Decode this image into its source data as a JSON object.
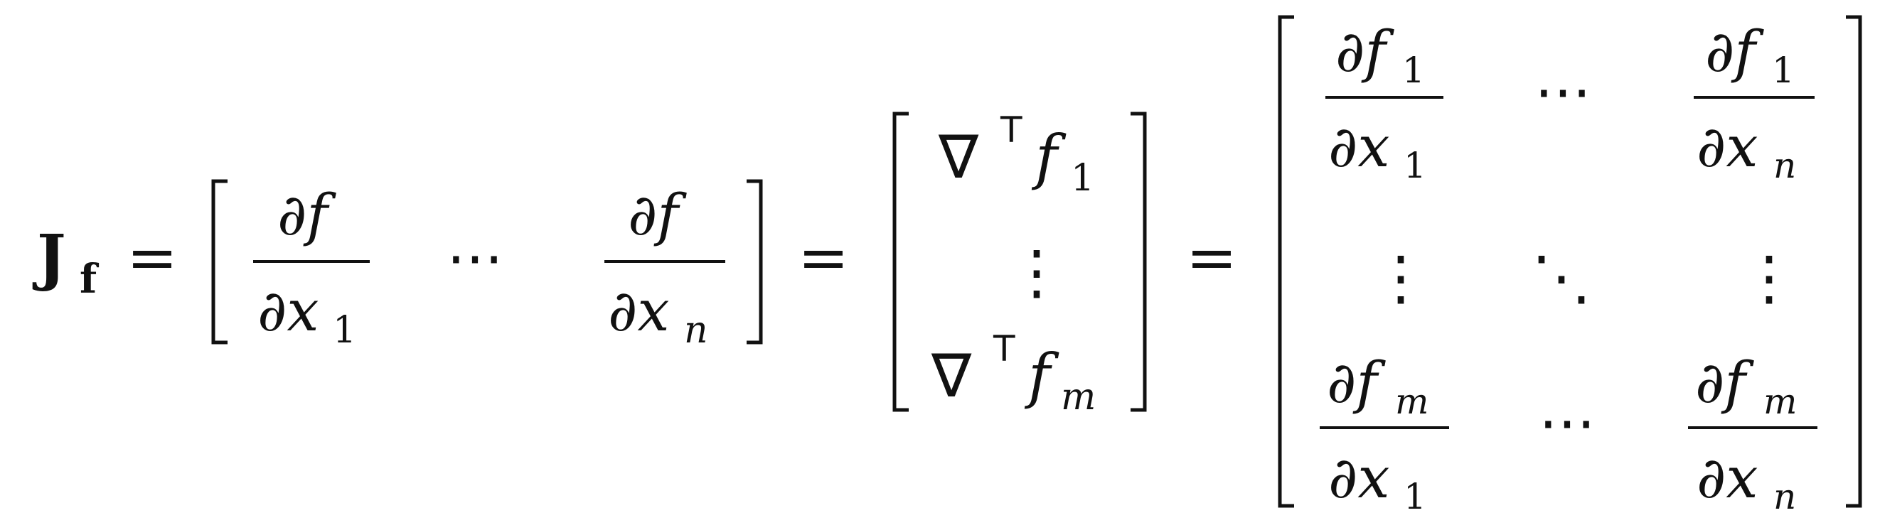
{
  "formula": {
    "lhs": {
      "symbol": "J",
      "subscript": "f"
    },
    "equals": "=",
    "row_vector": {
      "first": {
        "numerator": "∂f",
        "denominator": "∂x",
        "den_sub": "1"
      },
      "middle": "⋯",
      "last": {
        "numerator": "∂f",
        "denominator": "∂x",
        "den_sub": "n"
      }
    },
    "column_vector": {
      "top": {
        "nabla": "∇",
        "transpose": "T",
        "f": "f",
        "sub": "1"
      },
      "middle": "⋮",
      "bottom": {
        "nabla": "∇",
        "transpose": "T",
        "f": "f",
        "sub": "m"
      }
    },
    "matrix": {
      "r1c1": {
        "num_f": "∂f",
        "num_sub": "1",
        "den_x": "∂x",
        "den_sub": "1"
      },
      "r1c2": "⋯",
      "r1c3": {
        "num_f": "∂f",
        "num_sub": "1",
        "den_x": "∂x",
        "den_sub": "n"
      },
      "r2c1": "⋮",
      "r2c2": "⋱",
      "r2c3": "⋮",
      "r3c1": {
        "num_f": "∂f",
        "num_sub": "m",
        "den_x": "∂x",
        "den_sub": "1"
      },
      "r3c2": "⋯",
      "r3c3": {
        "num_f": "∂f",
        "num_sub": "m",
        "den_x": "∂x",
        "den_sub": "n"
      }
    }
  },
  "colors": {
    "ink": "#111111",
    "background": "#ffffff"
  }
}
